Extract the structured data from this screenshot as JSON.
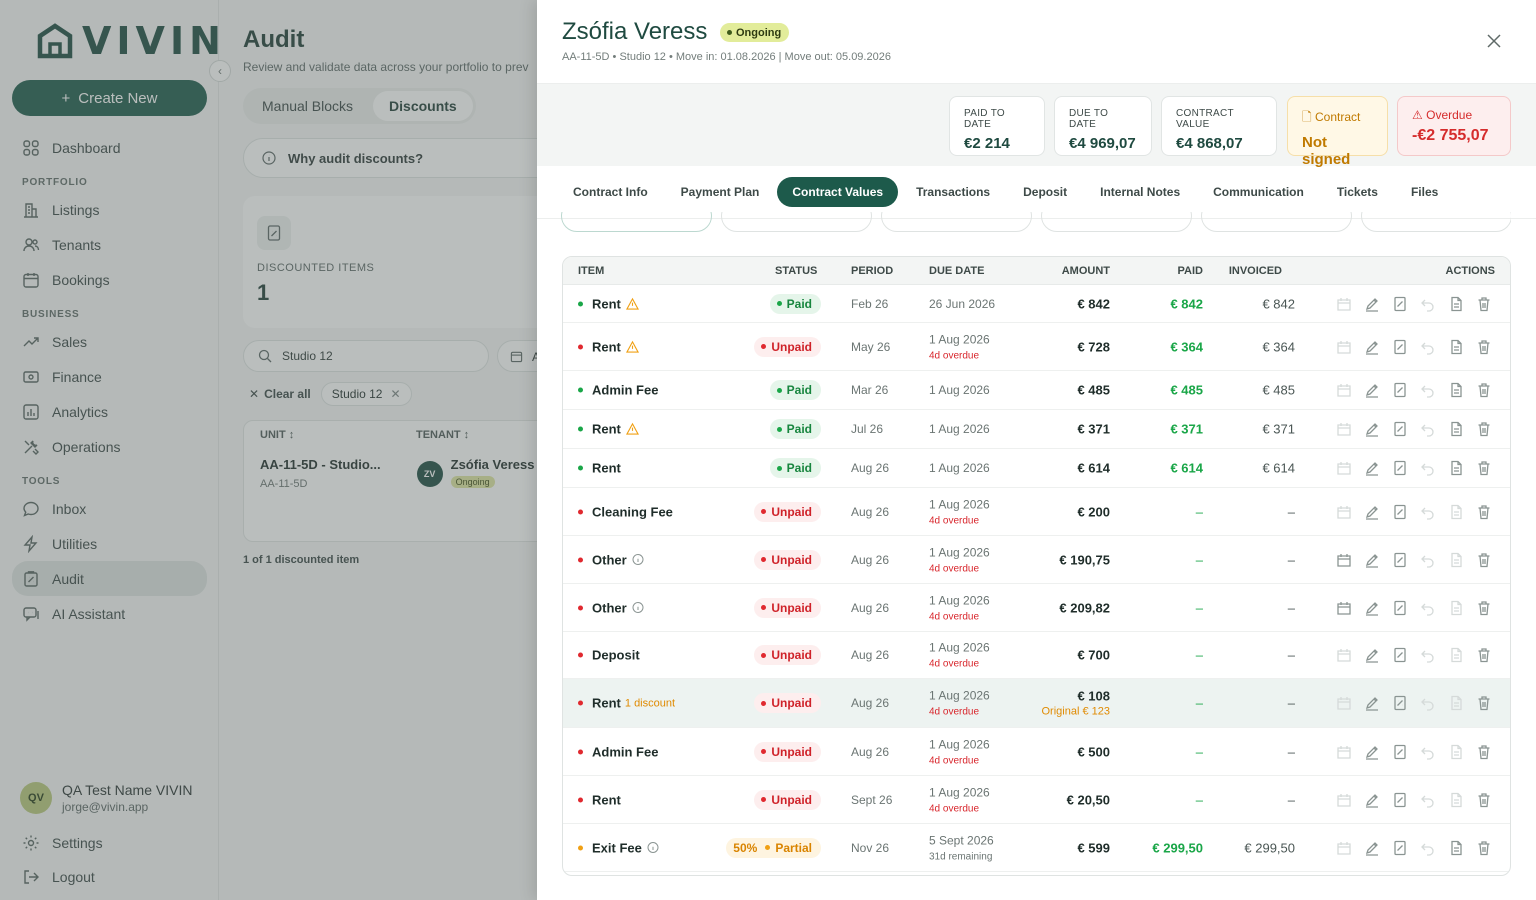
{
  "app": {
    "logo_text": "VIVIN",
    "create_label": "Create New"
  },
  "nav": {
    "top": [
      {
        "label": "Dashboard",
        "icon": "grid-icon"
      }
    ],
    "portfolio_title": "PORTFOLIO",
    "portfolio": [
      {
        "label": "Listings",
        "icon": "building-icon"
      },
      {
        "label": "Tenants",
        "icon": "users-icon"
      },
      {
        "label": "Bookings",
        "icon": "calendar-icon"
      }
    ],
    "business_title": "BUSINESS",
    "business": [
      {
        "label": "Sales",
        "icon": "trend-icon"
      },
      {
        "label": "Finance",
        "icon": "money-icon"
      },
      {
        "label": "Analytics",
        "icon": "chart-icon"
      },
      {
        "label": "Operations",
        "icon": "tools-icon"
      }
    ],
    "tools_title": "TOOLS",
    "tools": [
      {
        "label": "Inbox",
        "icon": "chat-icon"
      },
      {
        "label": "Utilities",
        "icon": "bolt-icon"
      },
      {
        "label": "Audit",
        "icon": "clipboard-icon"
      },
      {
        "label": "AI Assistant",
        "icon": "ai-chat-icon"
      }
    ],
    "settings": "Settings",
    "logout": "Logout"
  },
  "user": {
    "initials": "QV",
    "name": "QA Test Name VIVIN",
    "email": "jorge@vivin.app"
  },
  "main": {
    "title": "Audit",
    "subtitle": "Review and validate data across your portfolio to prev",
    "tabs": [
      "Manual Blocks",
      "Discounts"
    ],
    "why": "Why audit discounts?",
    "stat": {
      "label": "DISCOUNTED ITEMS",
      "value": "1"
    },
    "search_value": "Studio 12",
    "date_letter": "A",
    "clear_all": "Clear all",
    "filter_chip": "Studio 12",
    "col_unit": "UNIT",
    "col_tenant": "TENANT",
    "row_unit": "AA-11-5D - Studio...",
    "row_code": "AA-11-5D",
    "row_tenant_initials": "ZV",
    "row_tenant": "Zsófia Veress",
    "row_tenant_status": "Ongoing",
    "count_text": "1 of 1 discounted item"
  },
  "drawer": {
    "name": "Zsófia Veress",
    "status": "Ongoing",
    "meta": "AA-11-5D • Studio 12 • Move in: 01.08.2026 | Move out: 05.09.2026",
    "kpis": {
      "paid_label": "PAID TO DATE",
      "paid_value": "€2 214",
      "due_label": "DUE TO DATE",
      "due_value": "€4 969,07",
      "contract_label": "CONTRACT VALUE",
      "contract_value": "€4 868,07",
      "contract_status_label": "Contract",
      "contract_status_value": "Not signed",
      "overdue_label": "Overdue",
      "overdue_value": "-€2 755,07"
    },
    "tabs": [
      "Contract Info",
      "Payment Plan",
      "Contract Values",
      "Transactions",
      "Deposit",
      "Internal Notes",
      "Communication",
      "Tickets",
      "Files"
    ],
    "active_tab": "Contract Values",
    "columns": {
      "item": "ITEM",
      "status": "STATUS",
      "period": "PERIOD",
      "due": "DUE DATE",
      "amount": "AMOUNT",
      "paid": "PAID",
      "invoiced": "INVOICED",
      "actions": "ACTIONS"
    },
    "rows": [
      {
        "item": "Rent",
        "dot": "g",
        "flag": "warn",
        "status": "Paid",
        "st": "paid",
        "period": "Feb 26",
        "due": "26 Jun 2026",
        "due_sub": "",
        "amount": "€ 842",
        "amount_sub": "",
        "paid": "€ 842",
        "invoiced": "€ 842"
      },
      {
        "item": "Rent",
        "dot": "r",
        "flag": "warn",
        "status": "Unpaid",
        "st": "unpaid",
        "period": "May 26",
        "due": "1 Aug 2026",
        "due_sub": "4d overdue",
        "amount": "€ 728",
        "amount_sub": "",
        "paid": "€ 364",
        "invoiced": "€ 364"
      },
      {
        "item": "Admin Fee",
        "dot": "g",
        "flag": "",
        "status": "Paid",
        "st": "paid",
        "period": "Mar 26",
        "due": "1 Aug 2026",
        "due_sub": "",
        "amount": "€ 485",
        "amount_sub": "",
        "paid": "€ 485",
        "invoiced": "€ 485"
      },
      {
        "item": "Rent",
        "dot": "g",
        "flag": "warn",
        "status": "Paid",
        "st": "paid",
        "period": "Jul 26",
        "due": "1 Aug 2026",
        "due_sub": "",
        "amount": "€ 371",
        "amount_sub": "",
        "paid": "€ 371",
        "invoiced": "€ 371"
      },
      {
        "item": "Rent",
        "dot": "g",
        "flag": "",
        "status": "Paid",
        "st": "paid",
        "period": "Aug 26",
        "due": "1 Aug 2026",
        "due_sub": "",
        "amount": "€ 614",
        "amount_sub": "",
        "paid": "€ 614",
        "invoiced": "€ 614"
      },
      {
        "item": "Cleaning Fee",
        "dot": "r",
        "flag": "",
        "status": "Unpaid",
        "st": "unpaid",
        "period": "Aug 26",
        "due": "1 Aug 2026",
        "due_sub": "4d overdue",
        "amount": "€ 200",
        "amount_sub": "",
        "paid": "–",
        "invoiced": "–"
      },
      {
        "item": "Other",
        "dot": "r",
        "flag": "info",
        "status": "Unpaid",
        "st": "unpaid",
        "period": "Aug 26",
        "due": "1 Aug 2026",
        "due_sub": "4d overdue",
        "amount": "€ 190,75",
        "amount_sub": "",
        "paid": "–",
        "invoiced": "–"
      },
      {
        "item": "Other",
        "dot": "r",
        "flag": "info",
        "status": "Unpaid",
        "st": "unpaid",
        "period": "Aug 26",
        "due": "1 Aug 2026",
        "due_sub": "4d overdue",
        "amount": "€ 209,82",
        "amount_sub": "",
        "paid": "–",
        "invoiced": "–"
      },
      {
        "item": "Deposit",
        "dot": "r",
        "flag": "",
        "status": "Unpaid",
        "st": "unpaid",
        "period": "Aug 26",
        "due": "1 Aug 2026",
        "due_sub": "4d overdue",
        "amount": "€ 700",
        "amount_sub": "",
        "paid": "–",
        "invoiced": "–"
      },
      {
        "item": "Rent",
        "dot": "r",
        "flag": "discount",
        "discount": "1 discount",
        "status": "Unpaid",
        "st": "unpaid",
        "period": "Aug 26",
        "due": "1 Aug 2026",
        "due_sub": "4d overdue",
        "amount": "€ 108",
        "amount_sub": "Original € 123",
        "paid": "–",
        "invoiced": "–",
        "highlight": true
      },
      {
        "item": "Admin Fee",
        "dot": "r",
        "flag": "",
        "status": "Unpaid",
        "st": "unpaid",
        "period": "Aug 26",
        "due": "1 Aug 2026",
        "due_sub": "4d overdue",
        "amount": "€ 500",
        "amount_sub": "",
        "paid": "–",
        "invoiced": "–"
      },
      {
        "item": "Rent",
        "dot": "r",
        "flag": "",
        "status": "Unpaid",
        "st": "unpaid",
        "period": "Sept 26",
        "due": "1 Aug 2026",
        "due_sub": "4d overdue",
        "amount": "€ 20,50",
        "amount_sub": "",
        "paid": "–",
        "invoiced": "–"
      },
      {
        "item": "Exit Fee",
        "dot": "o",
        "flag": "info",
        "status": "Partial",
        "status_prefix": "50%",
        "st": "partial",
        "period": "Nov 26",
        "due": "5 Sept 2026",
        "due_sub": "31d remaining",
        "amount": "€ 599",
        "amount_sub": "",
        "paid": "€ 299,50",
        "invoiced": "€ 299,50"
      }
    ]
  },
  "colors": {
    "brand": "#1d5a4b",
    "paid": "#1aa648",
    "unpaid": "#e0292f",
    "partial": "#f0a014"
  }
}
